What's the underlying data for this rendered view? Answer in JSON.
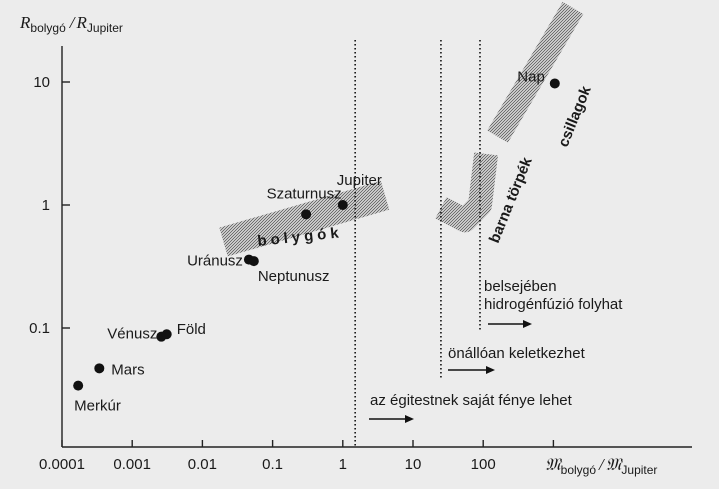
{
  "chart_data": {
    "type": "scatter",
    "x_scale": "log",
    "y_scale": "log",
    "xlim": [
      0.0001,
      10000
    ],
    "ylim": [
      0.01,
      30
    ],
    "ylabel": {
      "main": "R",
      "sub1": "bolygó",
      "slash": "/",
      "main2": "R",
      "sub2": "Jupiter"
    },
    "xlabel": {
      "main": "𝔐",
      "sub1": "bolygó",
      "slash": "/",
      "main2": "𝔐",
      "sub2": "Jupiter"
    },
    "x_ticks": [
      {
        "value": 0.0001,
        "label": "0.0001"
      },
      {
        "value": 0.001,
        "label": "0.001"
      },
      {
        "value": 0.01,
        "label": "0.01"
      },
      {
        "value": 0.1,
        "label": "0.1"
      },
      {
        "value": 1,
        "label": "1"
      },
      {
        "value": 10,
        "label": "10"
      },
      {
        "value": 100,
        "label": "100"
      }
    ],
    "x_tick_marks": [
      0.0001,
      0.001,
      0.01,
      0.1,
      1,
      10,
      100,
      1000
    ],
    "y_ticks": [
      {
        "value": 10,
        "label": "10"
      },
      {
        "value": 1,
        "label": "1"
      },
      {
        "value": 0.1,
        "label": "0.1"
      }
    ],
    "points": [
      {
        "name": "Merkúr",
        "x": 0.00017,
        "y": 0.034
      },
      {
        "name": "Vénusz",
        "x": 0.0026,
        "y": 0.085
      },
      {
        "name": "Föld",
        "x": 0.0031,
        "y": 0.089
      },
      {
        "name": "Mars",
        "x": 0.00034,
        "y": 0.047
      },
      {
        "name": "Uránusz",
        "x": 0.046,
        "y": 0.36
      },
      {
        "name": "Neptunusz",
        "x": 0.054,
        "y": 0.35
      },
      {
        "name": "Szaturnusz",
        "x": 0.3,
        "y": 0.84
      },
      {
        "name": "Jupiter",
        "x": 1,
        "y": 1
      },
      {
        "name": "Nap",
        "x": 1047,
        "y": 9.73
      }
    ],
    "bands": [
      {
        "name": "bolygók",
        "path": [
          [
            0.02,
            0.5
          ],
          [
            4,
            1.2
          ]
        ]
      },
      {
        "name": "barna törpék",
        "path": [
          [
            25,
            0.95
          ],
          [
            55,
            0.75
          ],
          [
            90,
            1.0
          ],
          [
            110,
            2.6
          ]
        ]
      },
      {
        "name": "csillagok",
        "path": [
          [
            160,
            3.6
          ],
          [
            1900,
            40
          ]
        ]
      }
    ],
    "thresholds": [
      {
        "x": 1.5,
        "label": "az égitestnek saját fénye lehet"
      },
      {
        "x": 25,
        "label": "önállóan keletkezhet"
      },
      {
        "x": 90,
        "label": "belsejében hidrogénfúzió folyhat"
      }
    ]
  },
  "band_labels": {
    "planets": "bolygók",
    "brown_dwarfs": "barna törpék",
    "stars": "csillagok"
  },
  "annotations": {
    "own_light": "az égitestnek saját fénye lehet",
    "self_form": "önállóan keletkezhet",
    "fusion_line1": "belsejében",
    "fusion_line2": "hidrogénfúzió folyhat"
  }
}
